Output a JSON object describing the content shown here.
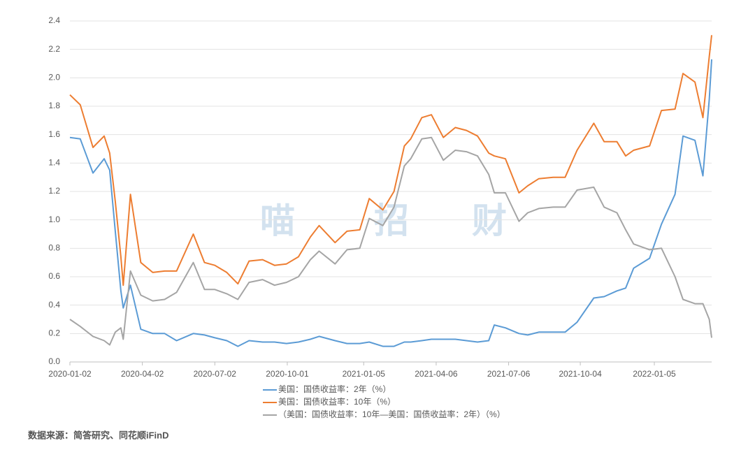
{
  "chart_data": {
    "type": "line",
    "watermark": [
      "喵",
      "招",
      "财"
    ],
    "source": "数据来源：简答研究、同花顺iFinD",
    "xlim": [
      "2020-01-02",
      "2022-03-18"
    ],
    "xticks": [
      "2020-01-02",
      "2020-04-02",
      "2020-07-02",
      "2020-10-01",
      "2021-01-05",
      "2021-04-06",
      "2021-07-06",
      "2021-10-04",
      "2022-01-05"
    ],
    "ylim": [
      0,
      2.4
    ],
    "yticks": [
      {
        "value": 0,
        "label": "0.0"
      },
      0.2,
      0.4,
      0.6,
      0.8,
      {
        "value": 1,
        "label": "1.0"
      },
      1.2,
      1.4,
      1.6,
      1.8,
      {
        "value": 2,
        "label": "2.0"
      },
      2.2,
      2.4
    ],
    "grid": true,
    "x": [
      "2020-01-02",
      "2020-01-15",
      "2020-01-31",
      "2020-02-14",
      "2020-02-21",
      "2020-02-28",
      "2020-03-06",
      "2020-03-09",
      "2020-03-18",
      "2020-03-31",
      "2020-04-15",
      "2020-04-30",
      "2020-05-15",
      "2020-06-05",
      "2020-06-19",
      "2020-07-02",
      "2020-07-17",
      "2020-07-31",
      "2020-08-14",
      "2020-08-31",
      "2020-09-15",
      "2020-09-30",
      "2020-10-15",
      "2020-10-30",
      "2020-11-10",
      "2020-11-30",
      "2020-12-15",
      "2020-12-31",
      "2021-01-12",
      "2021-01-29",
      "2021-02-12",
      "2021-02-25",
      "2021-03-05",
      "2021-03-19",
      "2021-03-31",
      "2021-04-15",
      "2021-04-30",
      "2021-05-14",
      "2021-05-28",
      "2021-06-11",
      "2021-06-18",
      "2021-07-02",
      "2021-07-19",
      "2021-07-30",
      "2021-08-13",
      "2021-08-31",
      "2021-09-15",
      "2021-09-30",
      "2021-10-21",
      "2021-11-03",
      "2021-11-19",
      "2021-11-30",
      "2021-12-10",
      "2021-12-30",
      "2022-01-14",
      "2022-01-31",
      "2022-02-10",
      "2022-02-25",
      "2022-03-07",
      "2022-03-15",
      "2022-03-18"
    ],
    "series": [
      {
        "name": "美国：国债收益率：2年（%）",
        "color": "#5b9bd5",
        "values": [
          1.58,
          1.57,
          1.33,
          1.43,
          1.35,
          0.92,
          0.5,
          0.38,
          0.54,
          0.23,
          0.2,
          0.2,
          0.15,
          0.2,
          0.19,
          0.17,
          0.15,
          0.11,
          0.15,
          0.14,
          0.14,
          0.13,
          0.14,
          0.16,
          0.18,
          0.15,
          0.13,
          0.13,
          0.14,
          0.11,
          0.11,
          0.14,
          0.14,
          0.15,
          0.16,
          0.16,
          0.16,
          0.15,
          0.14,
          0.15,
          0.26,
          0.24,
          0.2,
          0.19,
          0.21,
          0.21,
          0.21,
          0.28,
          0.45,
          0.46,
          0.5,
          0.52,
          0.66,
          0.73,
          0.97,
          1.18,
          1.59,
          1.56,
          1.31,
          1.85,
          2.13
        ]
      },
      {
        "name": "美国：国债收益率：10年（%）",
        "color": "#ed7d31",
        "values": [
          1.88,
          1.81,
          1.51,
          1.59,
          1.47,
          1.13,
          0.74,
          0.54,
          1.18,
          0.7,
          0.63,
          0.64,
          0.64,
          0.9,
          0.7,
          0.68,
          0.63,
          0.55,
          0.71,
          0.72,
          0.68,
          0.69,
          0.74,
          0.88,
          0.96,
          0.84,
          0.92,
          0.93,
          1.15,
          1.07,
          1.2,
          1.52,
          1.57,
          1.72,
          1.74,
          1.58,
          1.65,
          1.63,
          1.59,
          1.47,
          1.45,
          1.43,
          1.19,
          1.24,
          1.29,
          1.3,
          1.3,
          1.49,
          1.68,
          1.55,
          1.55,
          1.45,
          1.49,
          1.52,
          1.77,
          1.78,
          2.03,
          1.97,
          1.72,
          2.15,
          2.3
        ]
      },
      {
        "name": "（美国：国债收益率：10年—美国：国债收益率：2年）（%）",
        "color": "#a5a5a5",
        "values": [
          0.3,
          0.25,
          0.18,
          0.15,
          0.12,
          0.21,
          0.24,
          0.16,
          0.64,
          0.47,
          0.43,
          0.44,
          0.49,
          0.7,
          0.51,
          0.51,
          0.48,
          0.44,
          0.56,
          0.58,
          0.54,
          0.56,
          0.6,
          0.72,
          0.78,
          0.69,
          0.79,
          0.8,
          1.01,
          0.96,
          1.09,
          1.38,
          1.43,
          1.57,
          1.58,
          1.42,
          1.49,
          1.48,
          1.45,
          1.32,
          1.19,
          1.19,
          0.99,
          1.05,
          1.08,
          1.09,
          1.09,
          1.21,
          1.23,
          1.09,
          1.05,
          0.93,
          0.83,
          0.79,
          0.8,
          0.6,
          0.44,
          0.41,
          0.41,
          0.3,
          0.17
        ]
      }
    ]
  }
}
